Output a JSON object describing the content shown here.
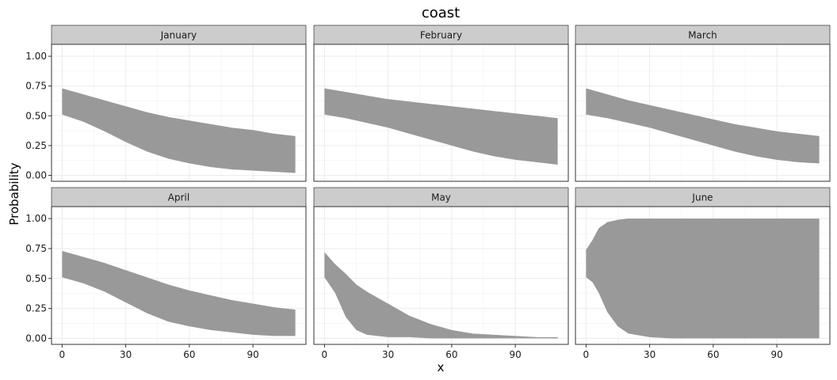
{
  "chart_data": {
    "type": "area",
    "title": "coast",
    "xlabel": "x",
    "ylabel": "Probability",
    "xlim": [
      -5,
      115
    ],
    "ylim": [
      -0.05,
      1.1
    ],
    "xticks": [
      0,
      30,
      60,
      90
    ],
    "yticks": [
      0,
      0.25,
      0.5,
      0.75,
      1.0
    ],
    "ytick_labels": [
      "0.00",
      "0.25",
      "0.50",
      "0.75",
      "1.00"
    ],
    "grid": true,
    "ribbon_color": "#999999",
    "panels": [
      {
        "label": "January",
        "x": [
          0,
          10,
          20,
          30,
          40,
          50,
          60,
          70,
          80,
          90,
          100,
          110
        ],
        "lower": [
          0.51,
          0.45,
          0.37,
          0.28,
          0.2,
          0.14,
          0.1,
          0.07,
          0.05,
          0.04,
          0.03,
          0.02
        ],
        "upper": [
          0.73,
          0.68,
          0.63,
          0.58,
          0.53,
          0.49,
          0.46,
          0.43,
          0.4,
          0.38,
          0.35,
          0.33
        ]
      },
      {
        "label": "February",
        "x": [
          0,
          10,
          20,
          30,
          40,
          50,
          60,
          70,
          80,
          90,
          100,
          110
        ],
        "lower": [
          0.51,
          0.48,
          0.44,
          0.4,
          0.35,
          0.3,
          0.25,
          0.2,
          0.16,
          0.13,
          0.11,
          0.09
        ],
        "upper": [
          0.73,
          0.7,
          0.67,
          0.64,
          0.62,
          0.6,
          0.58,
          0.56,
          0.54,
          0.52,
          0.5,
          0.48
        ]
      },
      {
        "label": "March",
        "x": [
          0,
          10,
          20,
          30,
          40,
          50,
          60,
          70,
          80,
          90,
          100,
          110
        ],
        "lower": [
          0.51,
          0.48,
          0.44,
          0.4,
          0.35,
          0.3,
          0.25,
          0.2,
          0.16,
          0.13,
          0.11,
          0.1
        ],
        "upper": [
          0.73,
          0.68,
          0.63,
          0.59,
          0.55,
          0.51,
          0.47,
          0.43,
          0.4,
          0.37,
          0.35,
          0.33
        ]
      },
      {
        "label": "April",
        "x": [
          0,
          10,
          20,
          30,
          40,
          50,
          60,
          70,
          80,
          90,
          100,
          110
        ],
        "lower": [
          0.51,
          0.46,
          0.39,
          0.3,
          0.21,
          0.14,
          0.1,
          0.07,
          0.05,
          0.03,
          0.02,
          0.02
        ],
        "upper": [
          0.73,
          0.68,
          0.63,
          0.57,
          0.51,
          0.45,
          0.4,
          0.36,
          0.32,
          0.29,
          0.26,
          0.24
        ]
      },
      {
        "label": "May",
        "x": [
          0,
          5,
          10,
          15,
          20,
          25,
          30,
          40,
          50,
          60,
          70,
          80,
          90,
          100,
          110
        ],
        "lower": [
          0.51,
          0.38,
          0.18,
          0.07,
          0.03,
          0.02,
          0.01,
          0.01,
          0.0,
          0.0,
          0.0,
          0.0,
          0.0,
          0.0,
          0.0
        ],
        "upper": [
          0.72,
          0.62,
          0.54,
          0.45,
          0.39,
          0.34,
          0.29,
          0.19,
          0.12,
          0.07,
          0.04,
          0.03,
          0.02,
          0.01,
          0.01
        ]
      },
      {
        "label": "June",
        "x": [
          0,
          3,
          6,
          10,
          15,
          20,
          30,
          40,
          50,
          60,
          70,
          80,
          90,
          100,
          110
        ],
        "lower": [
          0.51,
          0.47,
          0.38,
          0.22,
          0.1,
          0.04,
          0.01,
          0.0,
          0.0,
          0.0,
          0.0,
          0.0,
          0.0,
          0.0,
          0.0
        ],
        "upper": [
          0.74,
          0.82,
          0.92,
          0.97,
          0.99,
          1.0,
          1.0,
          1.0,
          1.0,
          1.0,
          1.0,
          1.0,
          1.0,
          1.0,
          1.0
        ]
      }
    ]
  }
}
